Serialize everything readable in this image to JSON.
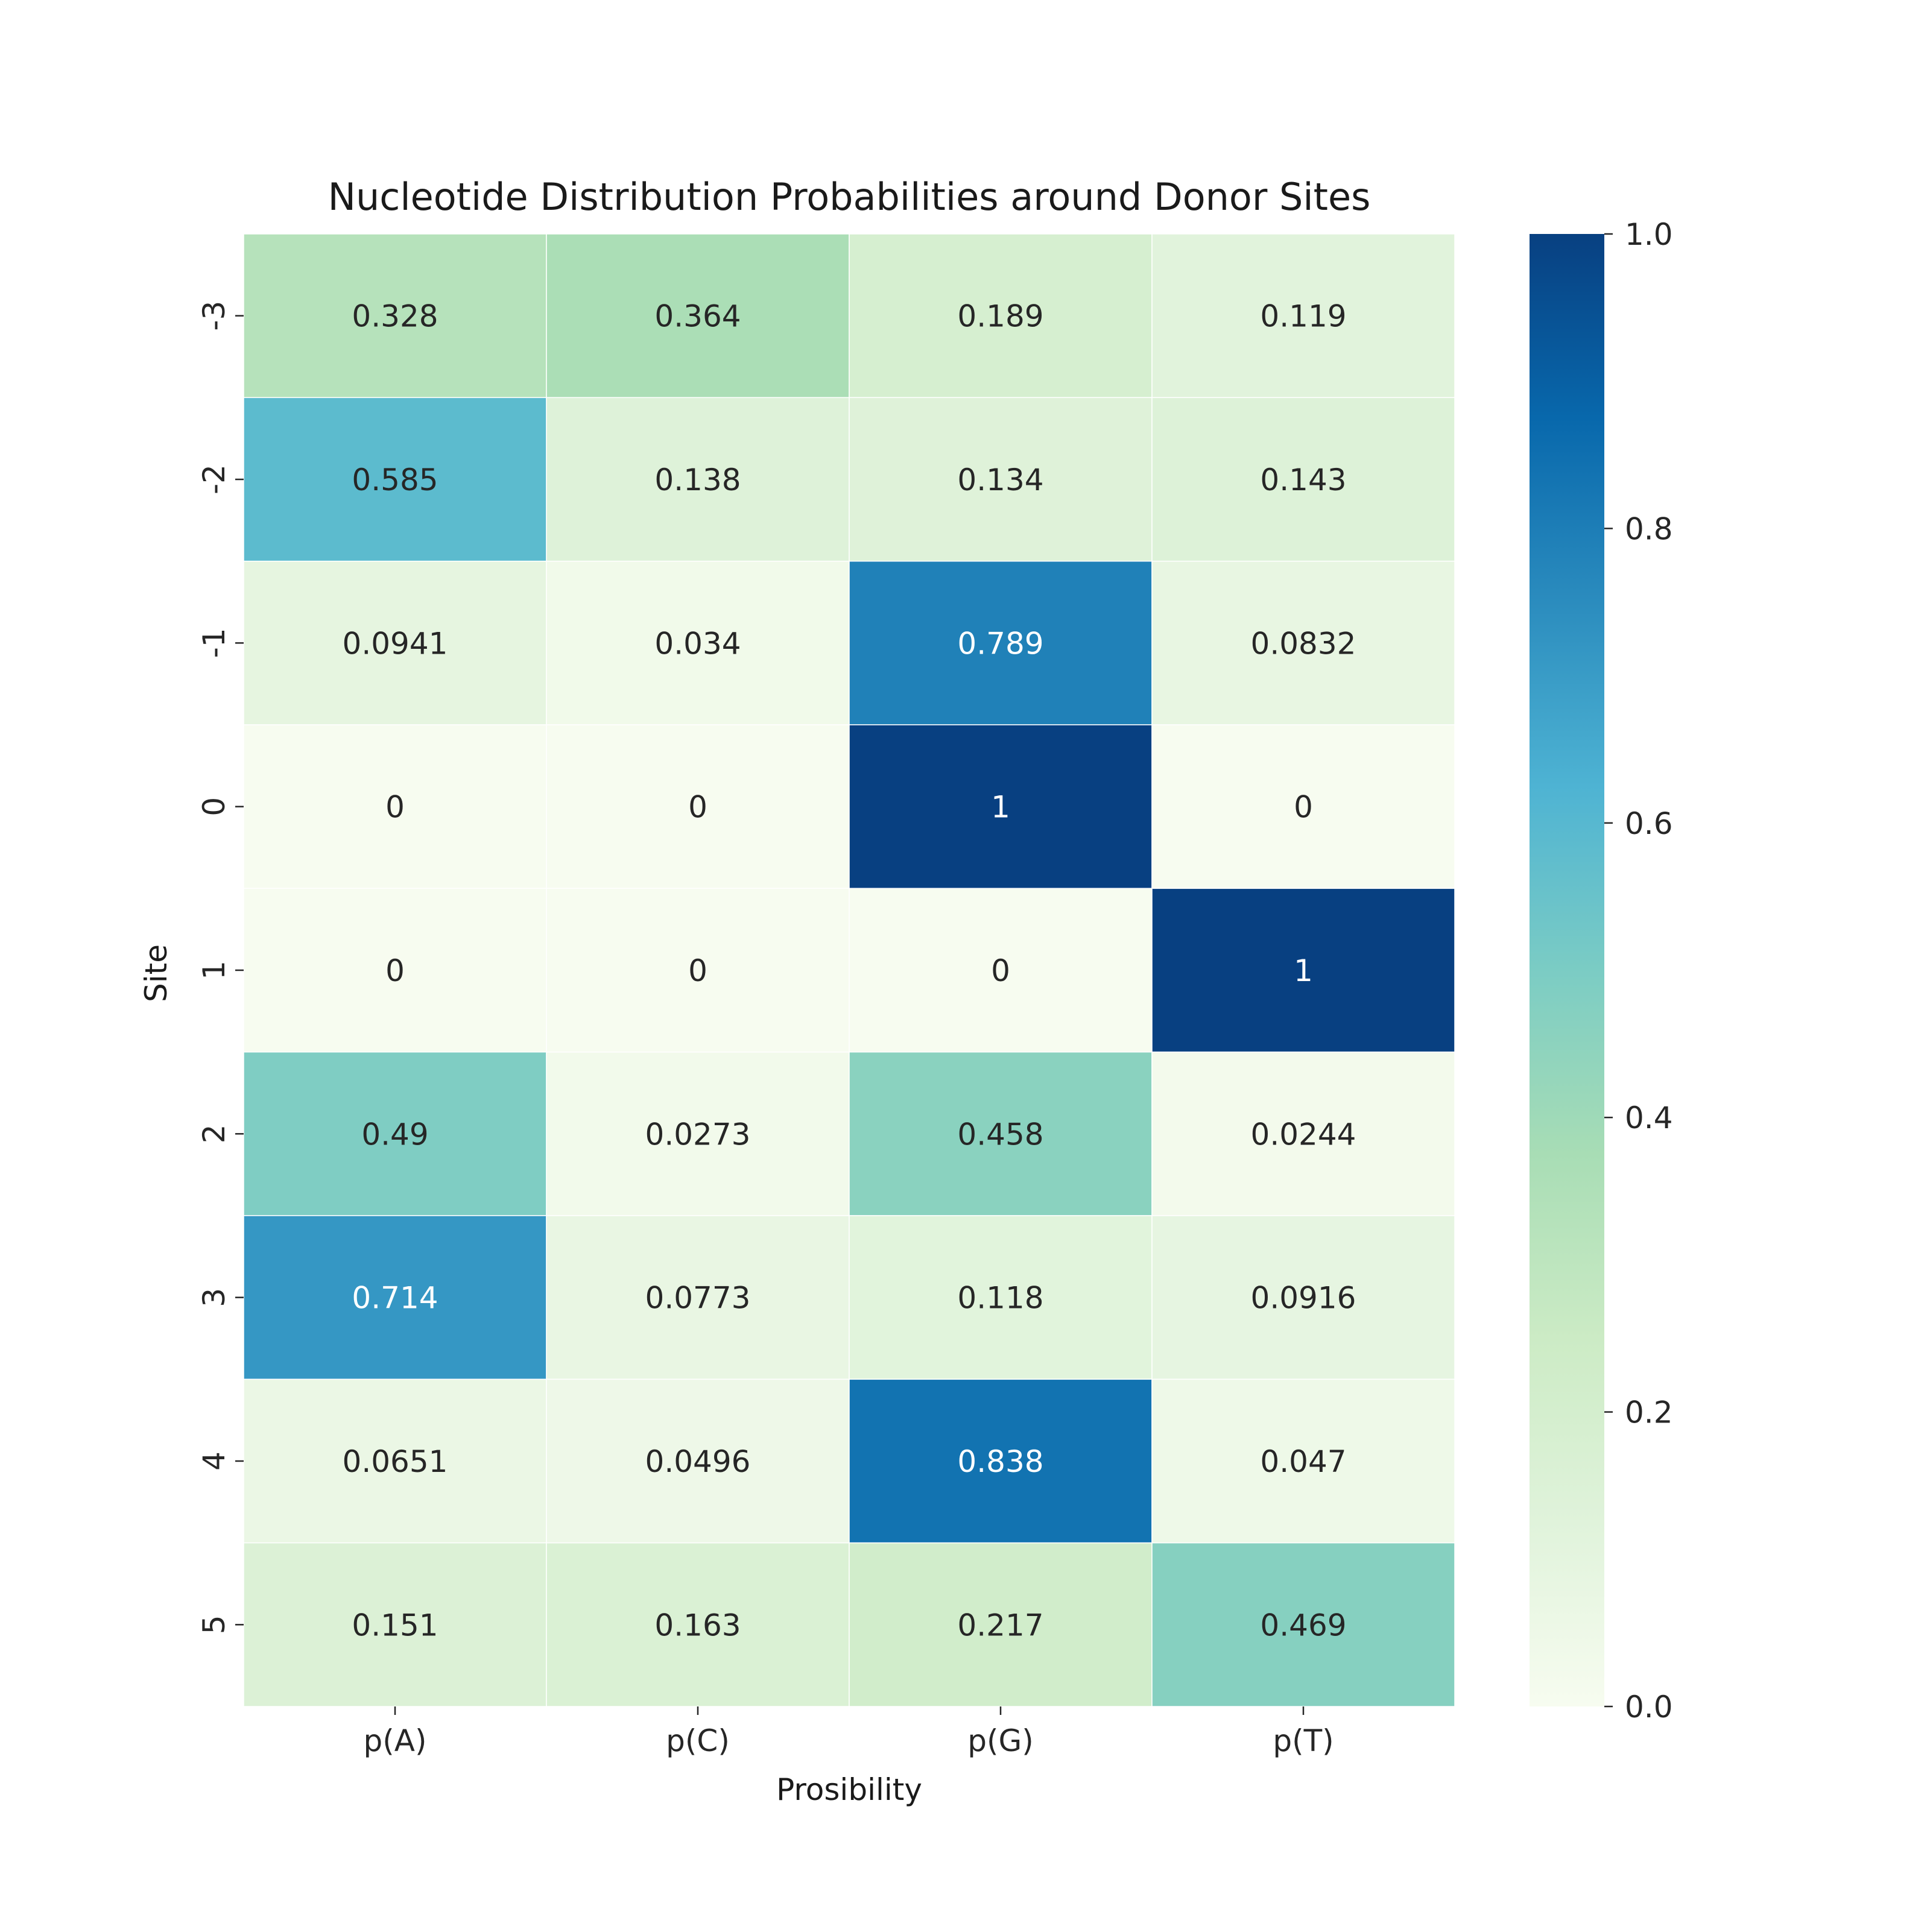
{
  "chart_data": {
    "type": "heatmap",
    "title": "Nucleotide Distribution Probabilities around Donor Sites",
    "xlabel": "Prosibility",
    "ylabel": "Site",
    "x_categories": [
      "p(A)",
      "p(C)",
      "p(G)",
      "p(T)"
    ],
    "y_categories": [
      "-3",
      "-2",
      "-1",
      "0",
      "1",
      "2",
      "3",
      "4",
      "5"
    ],
    "values": [
      [
        0.328,
        0.364,
        0.189,
        0.119
      ],
      [
        0.585,
        0.138,
        0.134,
        0.143
      ],
      [
        0.0941,
        0.034,
        0.789,
        0.0832
      ],
      [
        0,
        0,
        1,
        0
      ],
      [
        0,
        0,
        0,
        1
      ],
      [
        0.49,
        0.0273,
        0.458,
        0.0244
      ],
      [
        0.714,
        0.0773,
        0.118,
        0.0916
      ],
      [
        0.0651,
        0.0496,
        0.838,
        0.047
      ],
      [
        0.151,
        0.163,
        0.217,
        0.469
      ]
    ],
    "cell_labels": [
      [
        "0.328",
        "0.364",
        "0.189",
        "0.119"
      ],
      [
        "0.585",
        "0.138",
        "0.134",
        "0.143"
      ],
      [
        "0.0941",
        "0.034",
        "0.789",
        "0.0832"
      ],
      [
        "0",
        "0",
        "1",
        "0"
      ],
      [
        "0",
        "0",
        "0",
        "1"
      ],
      [
        "0.49",
        "0.0273",
        "0.458",
        "0.0244"
      ],
      [
        "0.714",
        "0.0773",
        "0.118",
        "0.0916"
      ],
      [
        "0.0651",
        "0.0496",
        "0.838",
        "0.047"
      ],
      [
        "0.151",
        "0.163",
        "0.217",
        "0.469"
      ]
    ],
    "colorbar": {
      "range": [
        0.0,
        1.0
      ],
      "ticks": [
        "0.0",
        "0.2",
        "0.4",
        "0.6",
        "0.8",
        "1.0"
      ],
      "colormap": "GnBu",
      "colors": [
        "#f7fcf0",
        "#e0f3db",
        "#ccebc5",
        "#a8ddb5",
        "#7bccc4",
        "#4eb3d3",
        "#2b8cbe",
        "#0868ac",
        "#084081"
      ]
    },
    "grid": false,
    "legend": "colorbar-right"
  }
}
